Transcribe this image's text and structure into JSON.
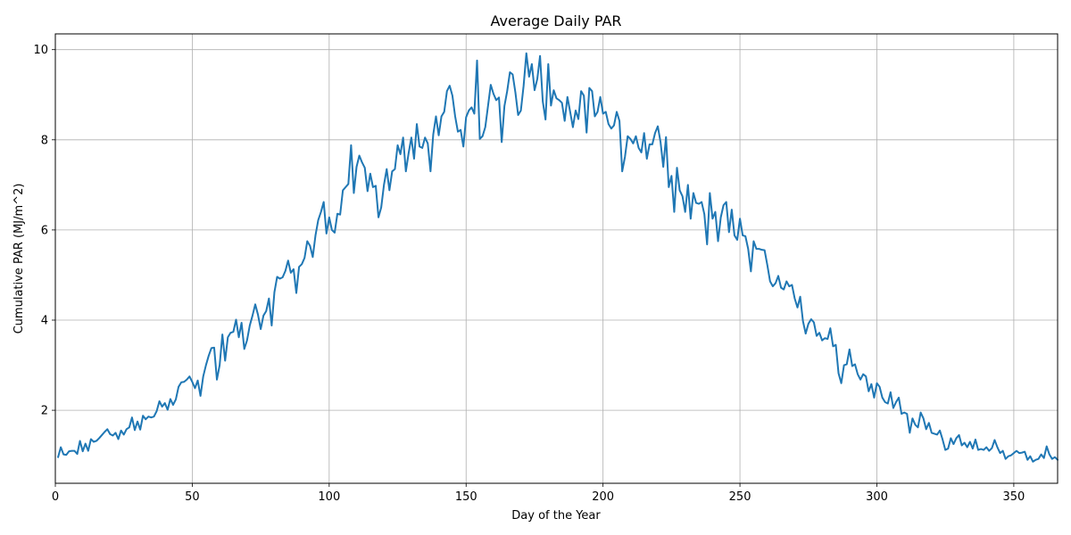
{
  "chart_data": {
    "type": "line",
    "title": "Average Daily PAR",
    "xlabel": "Day of the Year",
    "ylabel": "Cumulative PAR (MJ/m^2)",
    "xlim": [
      0,
      366
    ],
    "ylim": [
      0.38,
      10.35
    ],
    "xticks": [
      0,
      50,
      100,
      150,
      200,
      250,
      300,
      350
    ],
    "yticks": [
      2,
      4,
      6,
      8,
      10
    ],
    "grid": true,
    "line_color": "#1f77b4",
    "series": [
      {
        "x_start": 1,
        "values": [
          0.96,
          1.18,
          1.02,
          1.01,
          1.09,
          1.1,
          1.1,
          1.03,
          1.32,
          1.09,
          1.26,
          1.1,
          1.36,
          1.3,
          1.32,
          1.38,
          1.45,
          1.52,
          1.58,
          1.47,
          1.44,
          1.5,
          1.36,
          1.55,
          1.46,
          1.58,
          1.62,
          1.84,
          1.56,
          1.75,
          1.57,
          1.88,
          1.8,
          1.86,
          1.84,
          1.86,
          1.98,
          2.2,
          2.08,
          2.16,
          2.01,
          2.25,
          2.12,
          2.24,
          2.52,
          2.62,
          2.63,
          2.68,
          2.75,
          2.63,
          2.49,
          2.66,
          2.32,
          2.75,
          3.0,
          3.21,
          3.38,
          3.39,
          2.68,
          3.0,
          3.68,
          3.1,
          3.62,
          3.72,
          3.74,
          4.01,
          3.62,
          3.94,
          3.36,
          3.55,
          3.88,
          4.1,
          4.35,
          4.12,
          3.8,
          4.1,
          4.2,
          4.48,
          3.88,
          4.62,
          4.96,
          4.92,
          4.95,
          5.09,
          5.32,
          5.05,
          5.13,
          4.6,
          5.18,
          5.24,
          5.38,
          5.75,
          5.65,
          5.4,
          5.88,
          6.22,
          6.4,
          6.62,
          5.92,
          6.28,
          6.0,
          5.94,
          6.36,
          6.34,
          6.88,
          6.95,
          7.02,
          7.88,
          6.82,
          7.4,
          7.65,
          7.5,
          7.38,
          6.86,
          7.25,
          6.95,
          6.98,
          6.28,
          6.5,
          7.0,
          7.35,
          6.88,
          7.3,
          7.35,
          7.88,
          7.68,
          8.05,
          7.3,
          7.7,
          8.05,
          7.58,
          8.35,
          7.85,
          7.82,
          8.05,
          7.92,
          7.3,
          8.12,
          8.52,
          8.1,
          8.52,
          8.62,
          9.08,
          9.2,
          8.98,
          8.52,
          8.18,
          8.22,
          7.85,
          8.5,
          8.65,
          8.72,
          8.58,
          9.76,
          8.02,
          8.08,
          8.28,
          8.75,
          9.22,
          9.02,
          8.88,
          8.94,
          7.95,
          8.75,
          9.08,
          9.5,
          9.45,
          9.05,
          8.55,
          8.65,
          9.2,
          9.92,
          9.4,
          9.68,
          9.1,
          9.35,
          9.86,
          8.85,
          8.45,
          9.68,
          8.76,
          9.1,
          8.92,
          8.88,
          8.82,
          8.42,
          8.95,
          8.62,
          8.28,
          8.65,
          8.46,
          9.08,
          8.98,
          8.16,
          9.15,
          9.08,
          8.52,
          8.62,
          8.95,
          8.58,
          8.62,
          8.35,
          8.25,
          8.32,
          8.62,
          8.42,
          7.3,
          7.62,
          8.08,
          8.02,
          7.92,
          8.08,
          7.82,
          7.72,
          8.15,
          7.58,
          7.9,
          7.9,
          8.15,
          8.3,
          7.95,
          7.4,
          8.06,
          6.95,
          7.2,
          6.4,
          7.38,
          6.88,
          6.75,
          6.4,
          7.0,
          6.25,
          6.82,
          6.6,
          6.58,
          6.62,
          6.35,
          5.68,
          6.82,
          6.25,
          6.4,
          5.75,
          6.28,
          6.55,
          6.62,
          5.95,
          6.45,
          5.88,
          5.78,
          6.25,
          5.88,
          5.86,
          5.58,
          5.08,
          5.75,
          5.58,
          5.58,
          5.56,
          5.55,
          5.22,
          4.86,
          4.75,
          4.82,
          4.98,
          4.72,
          4.68,
          4.86,
          4.75,
          4.78,
          4.48,
          4.28,
          4.52,
          3.98,
          3.7,
          3.92,
          4.02,
          3.95,
          3.65,
          3.72,
          3.55,
          3.6,
          3.58,
          3.82,
          3.42,
          3.45,
          2.82,
          2.6,
          3.0,
          3.02,
          3.35,
          2.98,
          3.02,
          2.8,
          2.68,
          2.8,
          2.75,
          2.42,
          2.58,
          2.28,
          2.6,
          2.52,
          2.28,
          2.18,
          2.15,
          2.4,
          2.05,
          2.18,
          2.28,
          1.92,
          1.95,
          1.92,
          1.5,
          1.82,
          1.68,
          1.62,
          1.95,
          1.82,
          1.58,
          1.72,
          1.5,
          1.48,
          1.46,
          1.55,
          1.35,
          1.12,
          1.15,
          1.38,
          1.25,
          1.38,
          1.45,
          1.22,
          1.28,
          1.18,
          1.3,
          1.15,
          1.35,
          1.12,
          1.14,
          1.12,
          1.18,
          1.1,
          1.16,
          1.34,
          1.18,
          1.05,
          1.1,
          0.92,
          0.98,
          1.0,
          1.05,
          1.1,
          1.05,
          1.06,
          1.08,
          0.9,
          0.98,
          0.86,
          0.9,
          0.92,
          1.02,
          0.94,
          1.2,
          1.02,
          0.92,
          0.96,
          0.9
        ]
      }
    ]
  }
}
